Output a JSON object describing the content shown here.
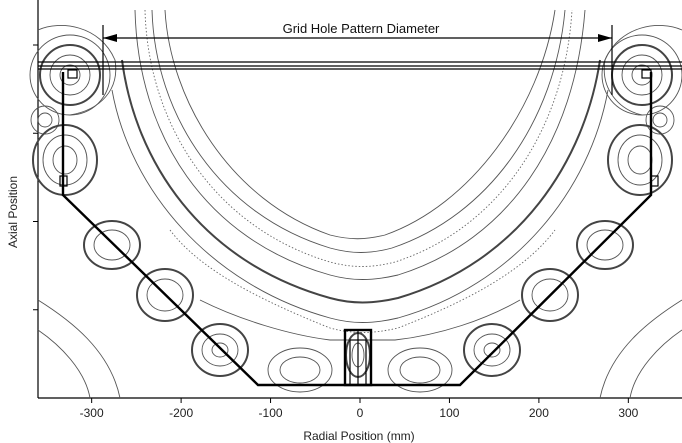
{
  "figure": {
    "dimension_label": "Grid Hole Pattern Diameter",
    "x_axis": {
      "title": "Radial Position (mm)",
      "ticks": [
        -300,
        -200,
        -100,
        0,
        100,
        200,
        300
      ],
      "range": [
        -360,
        360
      ]
    },
    "y_axis": {
      "title": "Axial Position",
      "tick_count": 4
    },
    "colors": {
      "contour": "#555555",
      "chamber_outline": "#000000",
      "background": "#ffffff"
    }
  }
}
